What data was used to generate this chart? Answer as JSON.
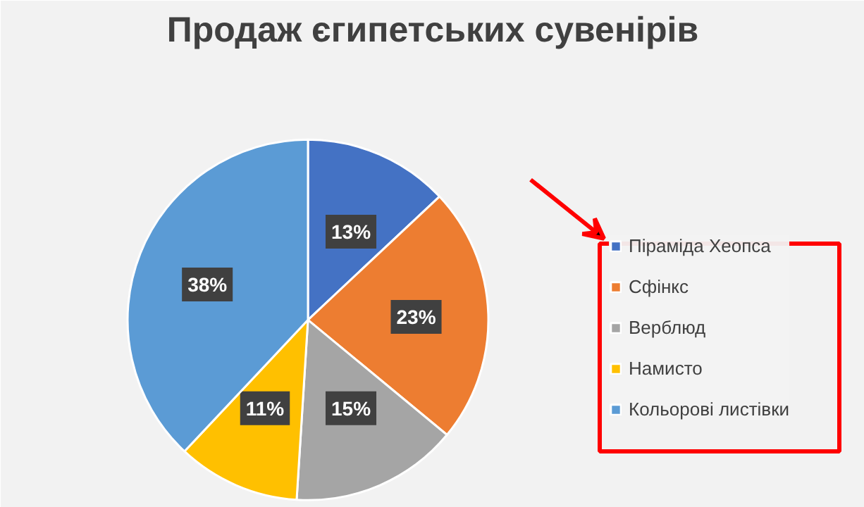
{
  "chart_data": {
    "type": "pie",
    "title": "Продаж єгипетських сувенірів",
    "categories": [
      "Піраміда Хеопса",
      "Сфінкс",
      "Верблюд",
      "Намисто",
      "Кольорові листівки"
    ],
    "values": [
      13,
      23,
      15,
      11,
      38
    ],
    "colors": [
      "#4472c4",
      "#ed7d31",
      "#a5a5a5",
      "#ffc000",
      "#5b9bd5"
    ],
    "value_labels": [
      "13%",
      "23%",
      "15%",
      "11%",
      "38%"
    ],
    "legend": "right"
  }
}
